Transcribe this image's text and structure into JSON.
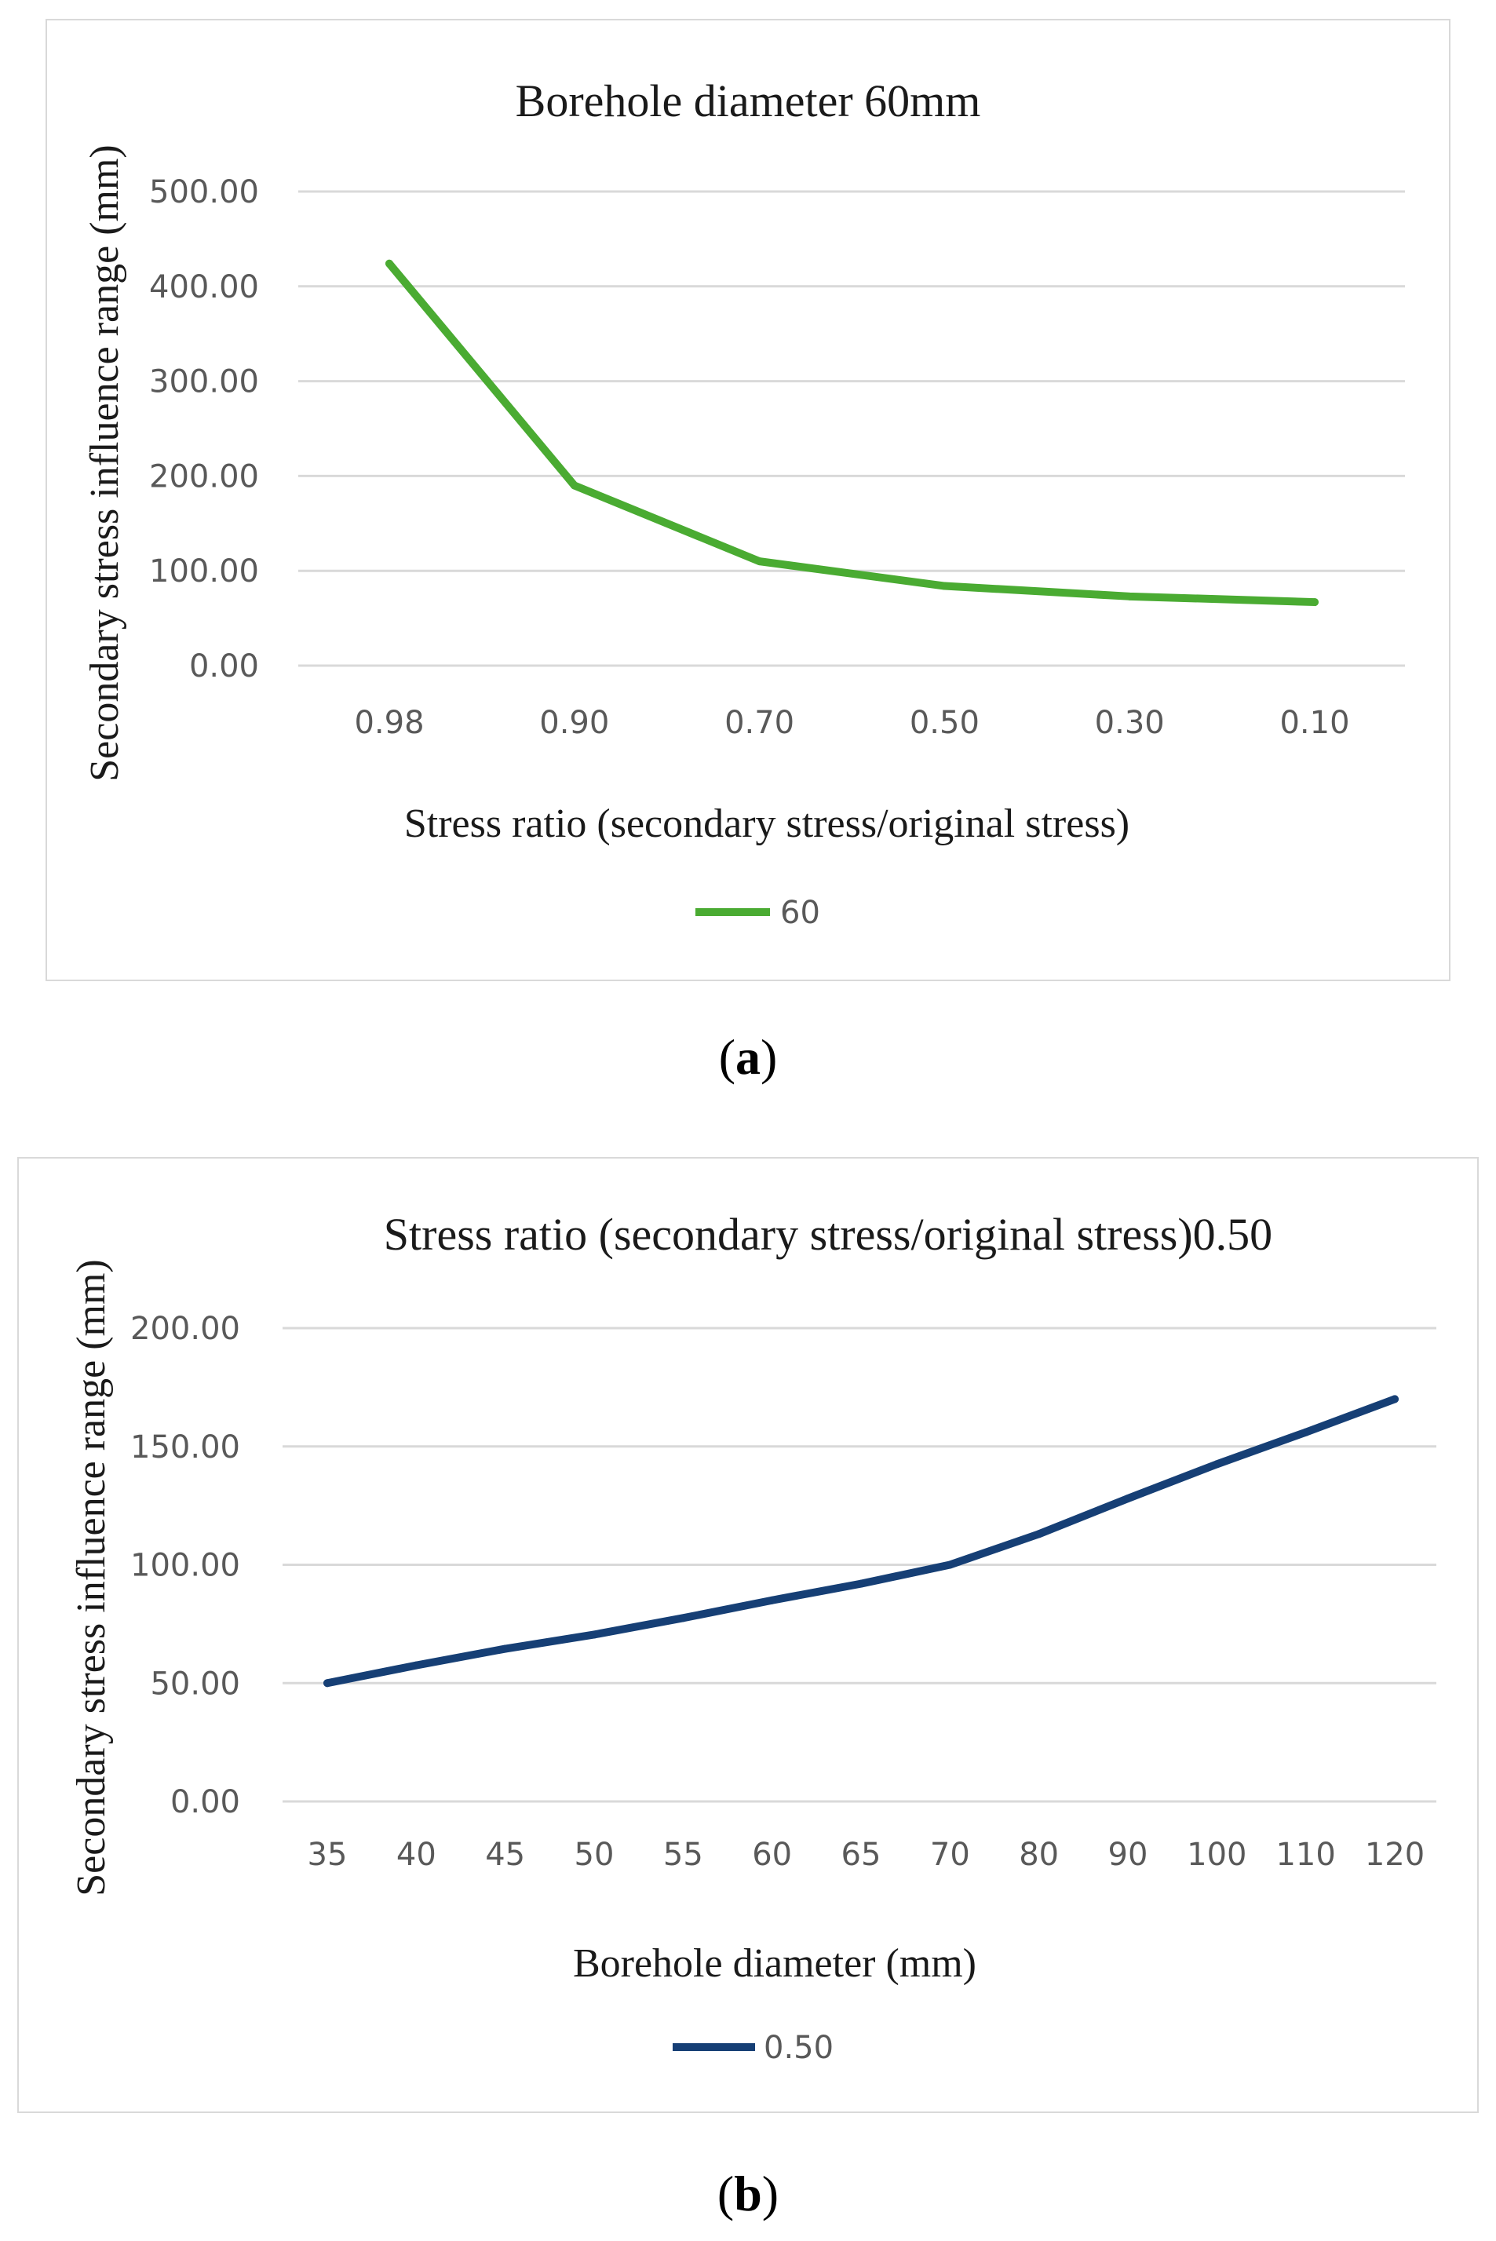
{
  "chart_data": [
    {
      "type": "line",
      "title": "Borehole diameter 60mm",
      "xlabel": "Stress ratio (secondary stress/original stress)",
      "ylabel": "Secondary stress influence range (mm)",
      "categories": [
        "0.98",
        "0.90",
        "0.70",
        "0.50",
        "0.30",
        "0.10"
      ],
      "series": [
        {
          "name": "60",
          "color": "#4aab32",
          "values": [
            424,
            190,
            110,
            84,
            73,
            67
          ]
        }
      ],
      "ylim": [
        0,
        500
      ],
      "yticks": [
        "0.00",
        "100.00",
        "200.00",
        "300.00",
        "400.00",
        "500.00"
      ],
      "grid": true,
      "legend": "bottom"
    },
    {
      "type": "line",
      "title": "Stress ratio (secondary stress/original stress)0.50",
      "xlabel": "Borehole diameter (mm)",
      "ylabel": "Secondary stress influence range (mm)",
      "categories": [
        "35",
        "40",
        "45",
        "50",
        "55",
        "60",
        "65",
        "70",
        "80",
        "90",
        "100",
        "110",
        "120"
      ],
      "series": [
        {
          "name": "0.50",
          "color": "#163f75",
          "values": [
            50,
            57.5,
            64.5,
            70.5,
            77.5,
            85,
            92,
            100,
            113,
            128,
            142.5,
            156,
            170
          ]
        }
      ],
      "ylim": [
        0,
        200
      ],
      "yticks": [
        "0.00",
        "50.00",
        "100.00",
        "150.00",
        "200.00"
      ],
      "grid": true,
      "legend": "bottom"
    }
  ],
  "captions": {
    "a": "a",
    "b": "b"
  }
}
